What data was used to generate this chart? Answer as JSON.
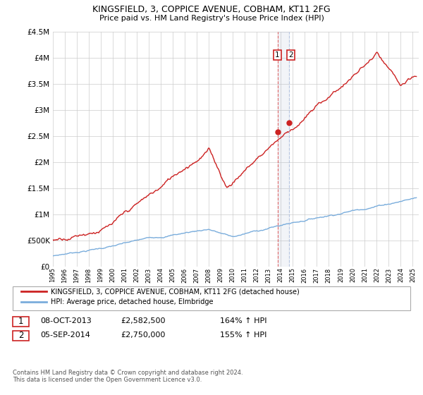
{
  "title": "KINGSFIELD, 3, COPPICE AVENUE, COBHAM, KT11 2FG",
  "subtitle": "Price paid vs. HM Land Registry's House Price Index (HPI)",
  "legend_line1": "KINGSFIELD, 3, COPPICE AVENUE, COBHAM, KT11 2FG (detached house)",
  "legend_line2": "HPI: Average price, detached house, Elmbridge",
  "annotation1_date": "08-OCT-2013",
  "annotation1_price": "£2,582,500",
  "annotation1_hpi": "164% ↑ HPI",
  "annotation2_date": "05-SEP-2014",
  "annotation2_price": "£2,750,000",
  "annotation2_hpi": "155% ↑ HPI",
  "footer": "Contains HM Land Registry data © Crown copyright and database right 2024.\nThis data is licensed under the Open Government Licence v3.0.",
  "hpi_color": "#7aaddc",
  "price_color": "#cc2222",
  "vline1_color": "#cc4444",
  "vline2_color": "#aabbdd",
  "ylim_max": 4500000,
  "sale1_x": 2013.77,
  "sale1_y": 2582500,
  "sale2_x": 2014.67,
  "sale2_y": 2750000,
  "xmin": 1995.0,
  "xmax": 2025.5,
  "yticks": [
    0,
    500000,
    1000000,
    1500000,
    2000000,
    2500000,
    3000000,
    3500000,
    4000000,
    4500000
  ],
  "ytick_labels": [
    "£0",
    "£500K",
    "£1M",
    "£1.5M",
    "£2M",
    "£2.5M",
    "£3M",
    "£3.5M",
    "£4M",
    "£4.5M"
  ]
}
